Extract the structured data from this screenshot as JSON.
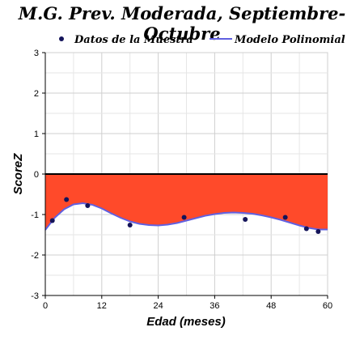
{
  "chart_data": {
    "type": "line",
    "title": "M.G. Prev. Moderada, Septiembre-Octubre",
    "xlabel": "Edad (meses)",
    "ylabel": "ScoreZ",
    "xlim": [
      0,
      60
    ],
    "ylim": [
      -3,
      3
    ],
    "xticks": [
      0,
      12,
      24,
      36,
      48,
      60
    ],
    "yticks": [
      -3,
      -2,
      -1,
      0,
      1,
      2,
      3
    ],
    "grid": true,
    "legend_position": "top",
    "colors": {
      "fill": "#ff4a2a",
      "curve": "#6060e0",
      "points": "#14145a",
      "zero_line": "#000000",
      "grid": "#cfcfcf"
    },
    "legend": [
      "Datos de la Muestra",
      "Modelo Polinomial"
    ],
    "series": [
      {
        "name": "Datos de la Muestra",
        "kind": "scatter",
        "x": [
          1.5,
          4.5,
          9,
          18,
          29.5,
          42.5,
          51,
          55.5,
          58
        ],
        "y": [
          -1.15,
          -0.63,
          -0.78,
          -1.26,
          -1.07,
          -1.12,
          -1.07,
          -1.35,
          -1.42
        ]
      },
      {
        "name": "Modelo Polinomial",
        "kind": "line",
        "x": [
          0,
          2,
          4,
          6,
          8,
          10,
          12,
          14,
          16,
          18,
          20,
          22,
          24,
          26,
          28,
          30,
          32,
          34,
          36,
          38,
          40,
          42,
          44,
          46,
          48,
          50,
          52,
          54,
          56,
          58,
          60
        ],
        "y": [
          -1.38,
          -1.08,
          -0.87,
          -0.75,
          -0.72,
          -0.76,
          -0.85,
          -0.97,
          -1.08,
          -1.17,
          -1.23,
          -1.26,
          -1.27,
          -1.25,
          -1.21,
          -1.15,
          -1.09,
          -1.03,
          -0.99,
          -0.96,
          -0.95,
          -0.96,
          -0.98,
          -1.02,
          -1.07,
          -1.13,
          -1.2,
          -1.27,
          -1.33,
          -1.37,
          -1.37
        ]
      }
    ]
  }
}
